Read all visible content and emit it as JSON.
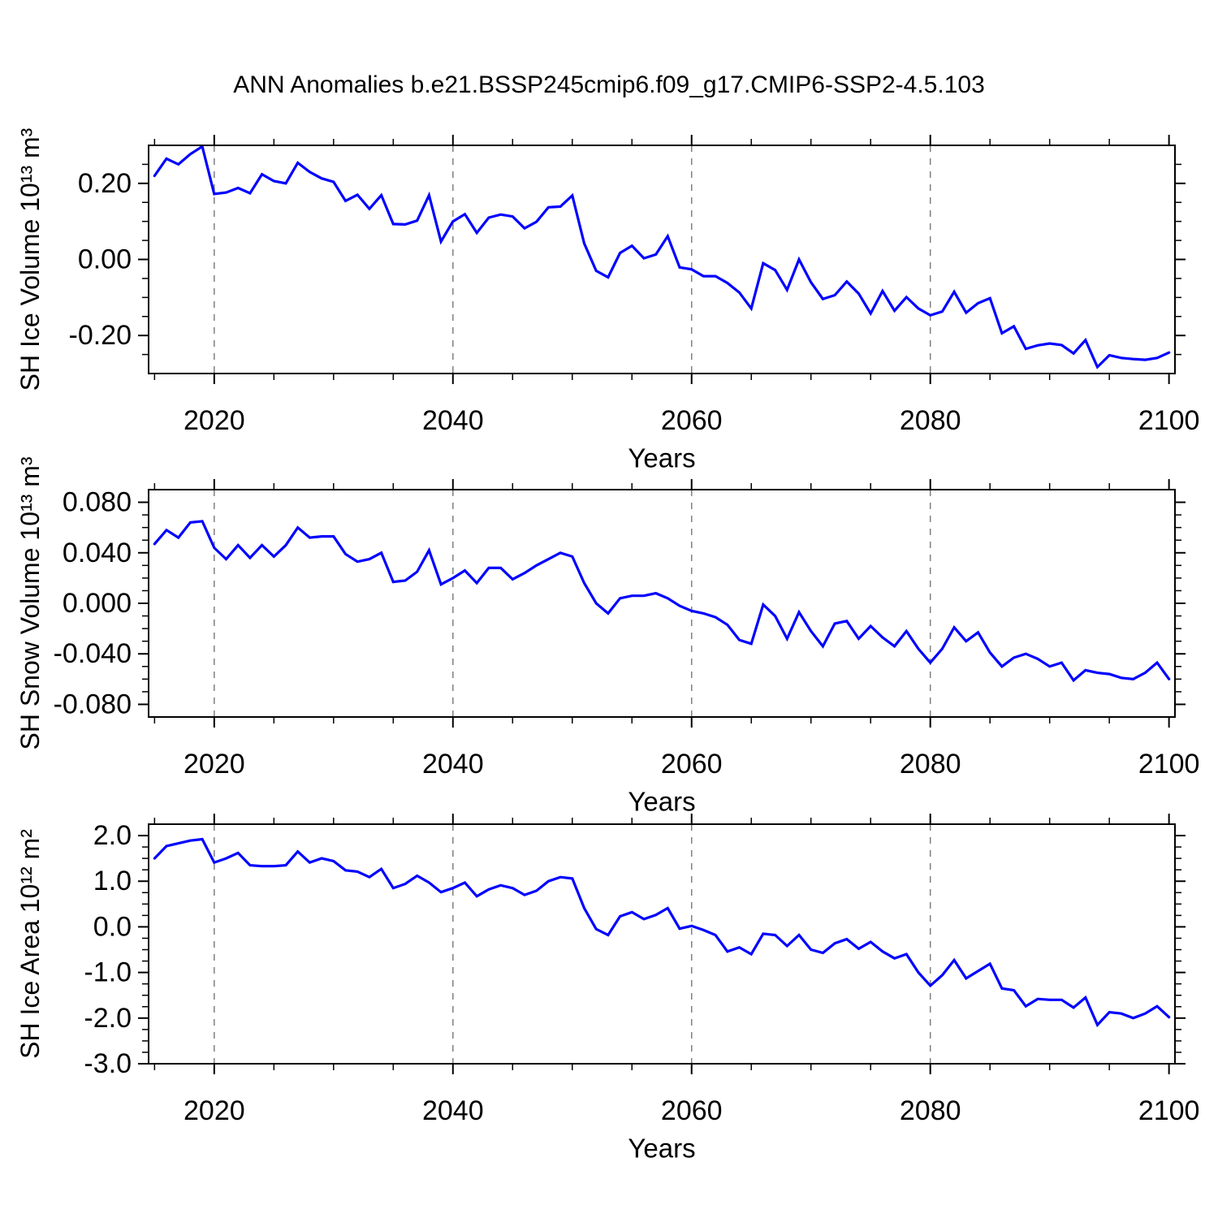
{
  "title": "ANN Anomalies b.e21.BSSP245cmip6.f09_g17.CMIP6-SSP2-4.5.103",
  "colors": {
    "line": "#0000FF",
    "axis": "#000000",
    "grid": "#808080",
    "background": "#FFFFFF"
  },
  "chart_data": [
    {
      "type": "line",
      "ylabel": "SH Ice Volume 10¹³ m³",
      "xlabel": "Years",
      "xlim": [
        2014.5,
        2100.5
      ],
      "ylim": [
        -0.3,
        0.3
      ],
      "xticks": [
        2020,
        2040,
        2060,
        2080,
        2100
      ],
      "xtick_labels": [
        "2020",
        "2040",
        "2060",
        "2080",
        "2100"
      ],
      "minor_x_step": 5,
      "yticks": [
        0.2,
        0.0,
        -0.2
      ],
      "ytick_labels": [
        "0.20",
        "0.00",
        "-0.20"
      ],
      "minor_y_step": 0.05,
      "grid_x": [
        2020,
        2040,
        2060,
        2080
      ],
      "years_start": 2015,
      "years_end": 2100,
      "values": [
        0.22,
        0.265,
        0.25,
        0.277,
        0.297,
        0.172,
        0.176,
        0.188,
        0.174,
        0.224,
        0.206,
        0.2,
        0.254,
        0.23,
        0.213,
        0.204,
        0.154,
        0.17,
        0.133,
        0.169,
        0.093,
        0.092,
        0.102,
        0.169,
        0.047,
        0.1,
        0.119,
        0.07,
        0.11,
        0.118,
        0.113,
        0.082,
        0.099,
        0.137,
        0.139,
        0.168,
        0.042,
        -0.03,
        -0.047,
        0.017,
        0.036,
        0.003,
        0.013,
        0.061,
        -0.021,
        -0.026,
        -0.044,
        -0.044,
        -0.062,
        -0.087,
        -0.129,
        -0.01,
        -0.028,
        -0.08,
        0.0,
        -0.06,
        -0.104,
        -0.094,
        -0.058,
        -0.09,
        -0.142,
        -0.083,
        -0.135,
        -0.099,
        -0.129,
        -0.147,
        -0.137,
        -0.085,
        -0.14,
        -0.115,
        -0.102,
        -0.194,
        -0.176,
        -0.235,
        -0.226,
        -0.221,
        -0.225,
        -0.247,
        -0.212,
        -0.283,
        -0.252,
        -0.259,
        -0.262,
        -0.264,
        -0.259,
        -0.245
      ]
    },
    {
      "type": "line",
      "ylabel": "SH Snow Volume 10¹³ m³",
      "xlabel": "Years",
      "xlim": [
        2014.5,
        2100.5
      ],
      "ylim": [
        -0.09,
        0.09
      ],
      "xticks": [
        2020,
        2040,
        2060,
        2080,
        2100
      ],
      "xtick_labels": [
        "2020",
        "2040",
        "2060",
        "2080",
        "2100"
      ],
      "minor_x_step": 5,
      "yticks": [
        0.08,
        0.04,
        0.0,
        -0.04,
        -0.08
      ],
      "ytick_labels": [
        "0.080",
        "0.040",
        "0.000",
        "-0.040",
        "-0.080"
      ],
      "minor_y_step": 0.01,
      "grid_x": [
        2020,
        2040,
        2060,
        2080
      ],
      "years_start": 2015,
      "years_end": 2100,
      "values": [
        0.047,
        0.058,
        0.052,
        0.064,
        0.065,
        0.044,
        0.035,
        0.046,
        0.036,
        0.046,
        0.037,
        0.046,
        0.06,
        0.052,
        0.053,
        0.053,
        0.039,
        0.033,
        0.035,
        0.04,
        0.017,
        0.018,
        0.025,
        0.042,
        0.015,
        0.02,
        0.026,
        0.016,
        0.028,
        0.028,
        0.019,
        0.024,
        0.03,
        0.035,
        0.04,
        0.037,
        0.016,
        0.0,
        -0.008,
        0.004,
        0.006,
        0.006,
        0.008,
        0.004,
        -0.002,
        -0.006,
        -0.008,
        -0.011,
        -0.017,
        -0.029,
        -0.032,
        -0.001,
        -0.01,
        -0.028,
        -0.007,
        -0.022,
        -0.034,
        -0.016,
        -0.014,
        -0.028,
        -0.018,
        -0.027,
        -0.034,
        -0.022,
        -0.036,
        -0.047,
        -0.036,
        -0.019,
        -0.03,
        -0.023,
        -0.039,
        -0.05,
        -0.043,
        -0.04,
        -0.044,
        -0.05,
        -0.047,
        -0.061,
        -0.053,
        -0.055,
        -0.056,
        -0.059,
        -0.06,
        -0.055,
        -0.047,
        -0.06
      ]
    },
    {
      "type": "line",
      "ylabel": "SH Ice Area 10¹² m²",
      "xlabel": "Years",
      "xlim": [
        2014.5,
        2100.5
      ],
      "ylim": [
        -3.0,
        2.25
      ],
      "xticks": [
        2020,
        2040,
        2060,
        2080,
        2100
      ],
      "xtick_labels": [
        "2020",
        "2040",
        "2060",
        "2080",
        "2100"
      ],
      "minor_x_step": 5,
      "yticks": [
        2.0,
        1.0,
        0.0,
        -1.0,
        -2.0,
        -3.0
      ],
      "ytick_labels": [
        "2.0",
        "1.0",
        "0.0",
        "-1.0",
        "-2.0",
        "-3.0"
      ],
      "minor_y_step": 0.25,
      "grid_x": [
        2020,
        2040,
        2060,
        2080
      ],
      "years_start": 2015,
      "years_end": 2100,
      "values": [
        1.5,
        1.77,
        1.83,
        1.89,
        1.92,
        1.41,
        1.5,
        1.62,
        1.35,
        1.33,
        1.33,
        1.35,
        1.65,
        1.41,
        1.5,
        1.44,
        1.24,
        1.21,
        1.09,
        1.27,
        0.85,
        0.94,
        1.12,
        0.97,
        0.76,
        0.85,
        0.97,
        0.67,
        0.82,
        0.91,
        0.85,
        0.7,
        0.79,
        1.0,
        1.09,
        1.06,
        0.41,
        -0.05,
        -0.18,
        0.23,
        0.32,
        0.17,
        0.26,
        0.41,
        -0.04,
        0.02,
        -0.07,
        -0.18,
        -0.54,
        -0.45,
        -0.6,
        -0.15,
        -0.18,
        -0.42,
        -0.18,
        -0.5,
        -0.57,
        -0.36,
        -0.27,
        -0.48,
        -0.33,
        -0.54,
        -0.69,
        -0.6,
        -1.0,
        -1.29,
        -1.06,
        -0.73,
        -1.13,
        -0.97,
        -0.81,
        -1.35,
        -1.39,
        -1.74,
        -1.58,
        -1.6,
        -1.6,
        -1.77,
        -1.55,
        -2.15,
        -1.87,
        -1.9,
        -2.0,
        -1.9,
        -1.74,
        -1.98
      ]
    }
  ]
}
